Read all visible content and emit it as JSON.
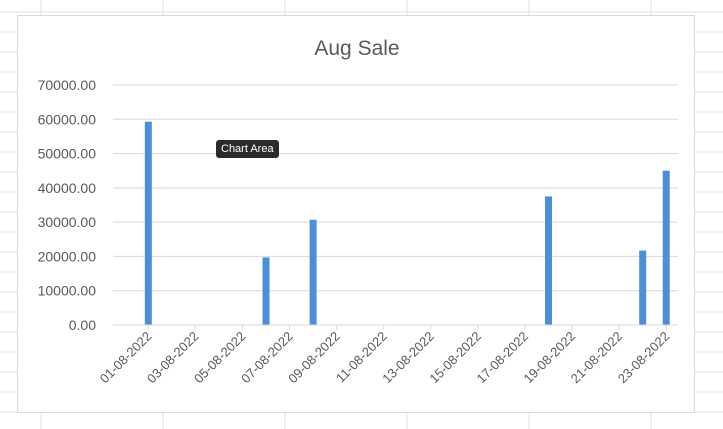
{
  "tooltip": "Chart Area",
  "colors": {
    "bar": "#4a90d9",
    "gridline": "#d9d9d9",
    "axis_text": "#595959",
    "title_text": "#595959"
  },
  "chart_data": {
    "type": "bar",
    "title": "Aug Sale",
    "xlabel": "",
    "ylabel": "",
    "ylim": [
      0,
      70000
    ],
    "y_ticks": [
      "0.00",
      "10000.00",
      "20000.00",
      "30000.00",
      "40000.00",
      "50000.00",
      "60000.00",
      "70000.00"
    ],
    "grid": true,
    "legend": "none",
    "x_tick_labels": [
      "01-08-2022",
      "03-08-2022",
      "05-08-2022",
      "07-08-2022",
      "09-08-2022",
      "11-08-2022",
      "13-08-2022",
      "15-08-2022",
      "17-08-2022",
      "19-08-2022",
      "21-08-2022",
      "23-08-2022"
    ],
    "x_range": [
      "31-07-2022",
      "24-08-2022"
    ],
    "points": [
      {
        "x": "01-08-2022",
        "y": 59300
      },
      {
        "x": "06-08-2022",
        "y": 19700
      },
      {
        "x": "08-08-2022",
        "y": 30700
      },
      {
        "x": "18-08-2022",
        "y": 37500
      },
      {
        "x": "22-08-2022",
        "y": 21700
      },
      {
        "x": "23-08-2022",
        "y": 45000
      }
    ]
  }
}
